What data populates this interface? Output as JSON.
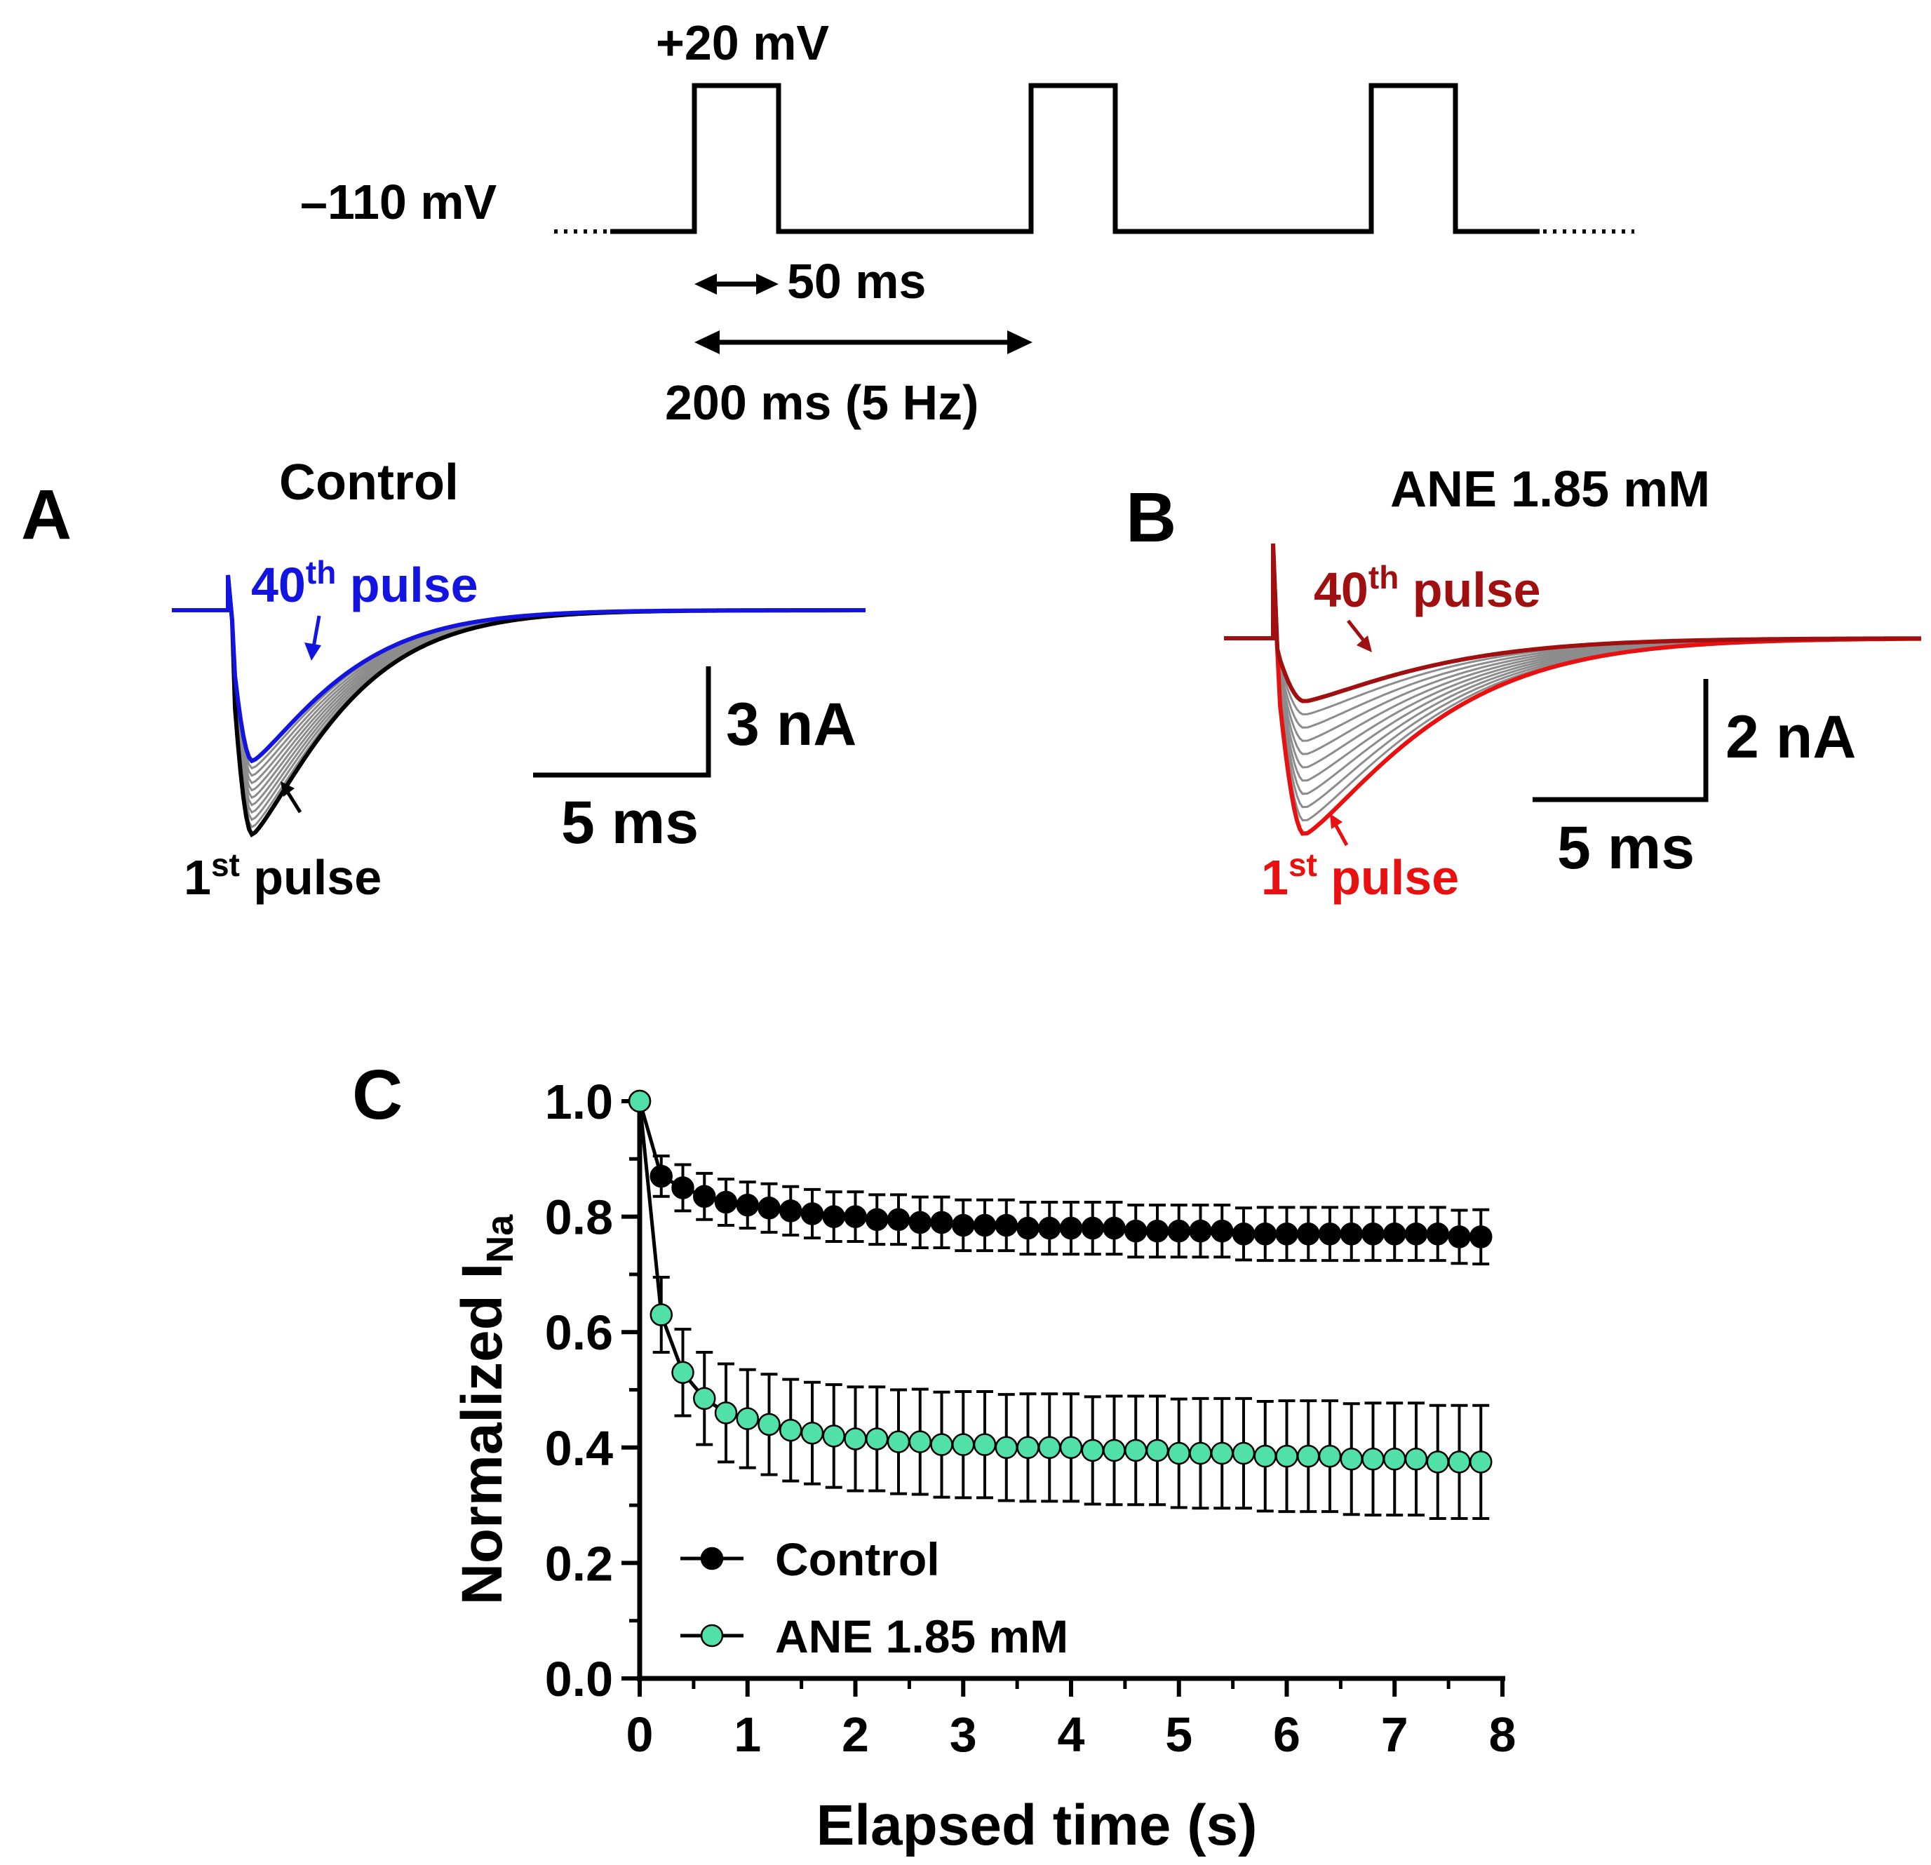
{
  "protocol": {
    "test_potential": "+20 mV",
    "holding_potential": "–110 mV",
    "pulse_duration": "50 ms",
    "pulse_interval": "200 ms (5 Hz)"
  },
  "panel_a": {
    "letter": "A",
    "title": "Control",
    "label_40th_num": "40",
    "label_40th_sup": "th",
    "label_40th_word": " pulse",
    "label_1st_num": "1",
    "label_1st_sup": "st",
    "label_1st_word": " pulse",
    "scale_current": "3 nA",
    "scale_time": "5 ms",
    "colors": {
      "pulse_40": "#1414e0",
      "pulse_1": "#000000",
      "intermediate": "#8c8c8c"
    }
  },
  "panel_b": {
    "letter": "B",
    "title": "ANE 1.85 mM",
    "label_40th_num": "40",
    "label_40th_sup": "th",
    "label_40th_word": " pulse",
    "label_1st_num": "1",
    "label_1st_sup": "st",
    "label_1st_word": " pulse",
    "scale_current": "2 nA",
    "scale_time": "5 ms",
    "colors": {
      "pulse_40": "#a01010",
      "pulse_1": "#e81010",
      "intermediate": "#8c8c8c"
    }
  },
  "panel_c": {
    "letter": "C"
  },
  "chart_data": {
    "type": "scatter",
    "xlabel": "Elapsed time (s)",
    "ylabel_main": "Normalized I",
    "ylabel_sub": "Na",
    "xlim": [
      0,
      8
    ],
    "ylim": [
      0.0,
      1.0
    ],
    "xticks": [
      "0",
      "1",
      "2",
      "3",
      "4",
      "5",
      "6",
      "7",
      "8"
    ],
    "yticks": [
      "0.0",
      "0.2",
      "0.4",
      "0.6",
      "0.8",
      "1.0"
    ],
    "legend_position": "bottom-left",
    "series": [
      {
        "name": "Control",
        "color": "#000000",
        "fill": "#000000",
        "x": [
          0.0,
          0.2,
          0.4,
          0.6,
          0.8,
          1.0,
          1.2,
          1.4,
          1.6,
          1.8,
          2.0,
          2.2,
          2.4,
          2.6,
          2.8,
          3.0,
          3.2,
          3.4,
          3.6,
          3.8,
          4.0,
          4.2,
          4.4,
          4.6,
          4.8,
          5.0,
          5.2,
          5.4,
          5.6,
          5.8,
          6.0,
          6.2,
          6.4,
          6.6,
          6.8,
          7.0,
          7.2,
          7.4,
          7.6,
          7.8
        ],
        "y": [
          1.0,
          0.87,
          0.85,
          0.835,
          0.825,
          0.82,
          0.815,
          0.81,
          0.805,
          0.8,
          0.8,
          0.795,
          0.795,
          0.79,
          0.79,
          0.785,
          0.785,
          0.785,
          0.78,
          0.78,
          0.78,
          0.78,
          0.78,
          0.775,
          0.775,
          0.775,
          0.775,
          0.775,
          0.77,
          0.77,
          0.77,
          0.77,
          0.77,
          0.77,
          0.77,
          0.77,
          0.77,
          0.77,
          0.765,
          0.765
        ],
        "err": [
          0.0,
          0.035,
          0.04,
          0.04,
          0.04,
          0.04,
          0.042,
          0.042,
          0.042,
          0.043,
          0.043,
          0.043,
          0.043,
          0.044,
          0.044,
          0.044,
          0.044,
          0.044,
          0.045,
          0.045,
          0.045,
          0.045,
          0.045,
          0.045,
          0.045,
          0.045,
          0.045,
          0.045,
          0.045,
          0.046,
          0.046,
          0.046,
          0.046,
          0.046,
          0.046,
          0.046,
          0.046,
          0.046,
          0.046,
          0.047
        ]
      },
      {
        "name": "ANE 1.85 mM",
        "color": "#000000",
        "fill": "#50e0a8",
        "x": [
          0.0,
          0.2,
          0.4,
          0.6,
          0.8,
          1.0,
          1.2,
          1.4,
          1.6,
          1.8,
          2.0,
          2.2,
          2.4,
          2.6,
          2.8,
          3.0,
          3.2,
          3.4,
          3.6,
          3.8,
          4.0,
          4.2,
          4.4,
          4.6,
          4.8,
          5.0,
          5.2,
          5.4,
          5.6,
          5.8,
          6.0,
          6.2,
          6.4,
          6.6,
          6.8,
          7.0,
          7.2,
          7.4,
          7.6,
          7.8
        ],
        "y": [
          1.0,
          0.63,
          0.53,
          0.485,
          0.46,
          0.45,
          0.44,
          0.43,
          0.425,
          0.42,
          0.415,
          0.415,
          0.41,
          0.41,
          0.405,
          0.405,
          0.405,
          0.4,
          0.4,
          0.4,
          0.4,
          0.395,
          0.395,
          0.395,
          0.395,
          0.39,
          0.39,
          0.39,
          0.39,
          0.385,
          0.385,
          0.385,
          0.385,
          0.38,
          0.38,
          0.38,
          0.38,
          0.375,
          0.375,
          0.375
        ],
        "err": [
          0.0,
          0.065,
          0.075,
          0.08,
          0.085,
          0.085,
          0.087,
          0.088,
          0.088,
          0.089,
          0.09,
          0.09,
          0.09,
          0.091,
          0.091,
          0.092,
          0.092,
          0.092,
          0.093,
          0.093,
          0.093,
          0.093,
          0.094,
          0.094,
          0.094,
          0.094,
          0.095,
          0.095,
          0.095,
          0.095,
          0.096,
          0.096,
          0.096,
          0.096,
          0.097,
          0.097,
          0.097,
          0.098,
          0.098,
          0.098
        ]
      }
    ]
  }
}
